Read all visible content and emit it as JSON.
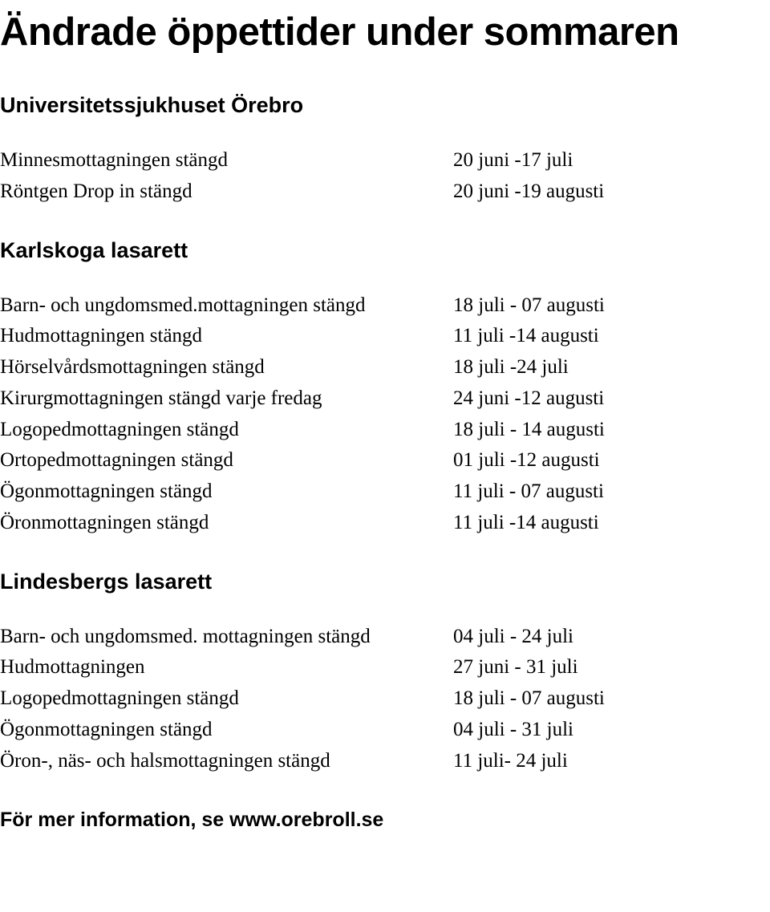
{
  "title": "Ändrade öppettider under sommaren",
  "sections": {
    "s1": {
      "heading": "Universitetssjukhuset Örebro",
      "rows": {
        "r0": {
          "label": "Minnesmottagningen stängd",
          "value": "20 juni -17 juli"
        },
        "r1": {
          "label": "Röntgen Drop in stängd",
          "value": "20 juni -19 augusti"
        }
      }
    },
    "s2": {
      "heading": "Karlskoga lasarett",
      "rows": {
        "r0": {
          "label": "Barn- och ungdomsmed.mottagningen stängd",
          "value": "18 juli - 07 augusti"
        },
        "r1": {
          "label": "Hudmottagningen stängd",
          "value": "11 juli -14 augusti"
        },
        "r2": {
          "label": "Hörselvårdsmottagningen stängd",
          "value": "18 juli -24 juli"
        },
        "r3": {
          "label": "Kirurgmottagningen stängd varje fredag",
          "value": "24 juni -12 augusti"
        },
        "r4": {
          "label": "Logopedmottagningen stängd",
          "value": "18 juli - 14 augusti"
        },
        "r5": {
          "label": "Ortopedmottagningen stängd",
          "value": "01 juli -12 augusti"
        },
        "r6": {
          "label": "Ögonmottagningen stängd",
          "value": "11 juli - 07 augusti"
        },
        "r7": {
          "label": "Öronmottagningen stängd",
          "value": "11 juli -14 augusti"
        }
      }
    },
    "s3": {
      "heading": "Lindesbergs lasarett",
      "rows": {
        "r0": {
          "label": "Barn- och ungdomsmed. mottagningen stängd",
          "value": "04 juli - 24 juli"
        },
        "r1": {
          "label": "Hudmottagningen",
          "value": "27 juni - 31 juli"
        },
        "r2": {
          "label": "Logopedmottagningen stängd",
          "value": "18 juli - 07 augusti"
        },
        "r3": {
          "label": "Ögonmottagningen stängd",
          "value": "04 juli - 31 juli"
        },
        "r4": {
          "label": "Öron-, näs- och halsmottagningen stängd",
          "value": "11 juli- 24 juli"
        }
      }
    }
  },
  "footer": "För mer information, se www.orebroll.se"
}
